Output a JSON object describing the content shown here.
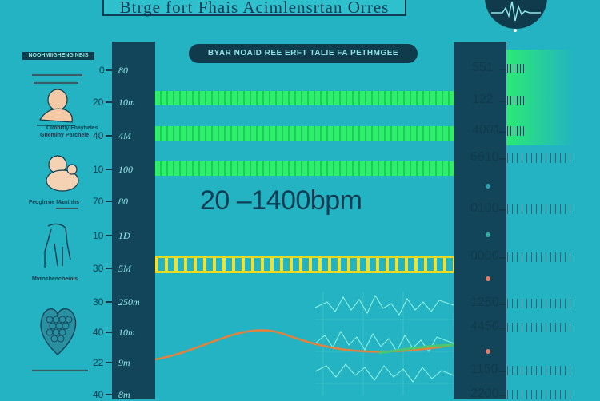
{
  "title": "Btrge fort Fhais Acimlensrtan Orres",
  "subtitle": "BYAR NOAID REE ERFT TALIE FA PETHMGEE",
  "big_label": "20 –1400bpm",
  "left_heading": "NOOHMIIGHENG NBIS",
  "left_labels": [
    "Clmnrtly Fbayheles",
    "Gnemlny Parchele",
    "Feoglrrue Manthhs",
    "Mvroshenchemls"
  ],
  "left_axis_outer": [
    "0",
    "20",
    "40",
    "10",
    "70",
    "10",
    "30",
    "30",
    "40",
    "22",
    "40"
  ],
  "left_axis_inner": [
    "80",
    "10m",
    "4M",
    "100",
    "80",
    "1D",
    "5M",
    "250m",
    "10m",
    "9m",
    "8m"
  ],
  "right_values": [
    "551",
    "122",
    "4001",
    "6610",
    "0100",
    "0000",
    "1250",
    "4450",
    "1150",
    "2200"
  ],
  "colors": {
    "background": "#23b3c2",
    "columns": "#13455a",
    "green_band": "#2cf06a",
    "yellow_band": "#f0e030",
    "orange_curve": "#e8803a",
    "wave": "#7fe0d0"
  },
  "icons": [
    "heartbeat-icon",
    "baby-icon",
    "infant-icon",
    "child-icon",
    "heart-icon"
  ]
}
